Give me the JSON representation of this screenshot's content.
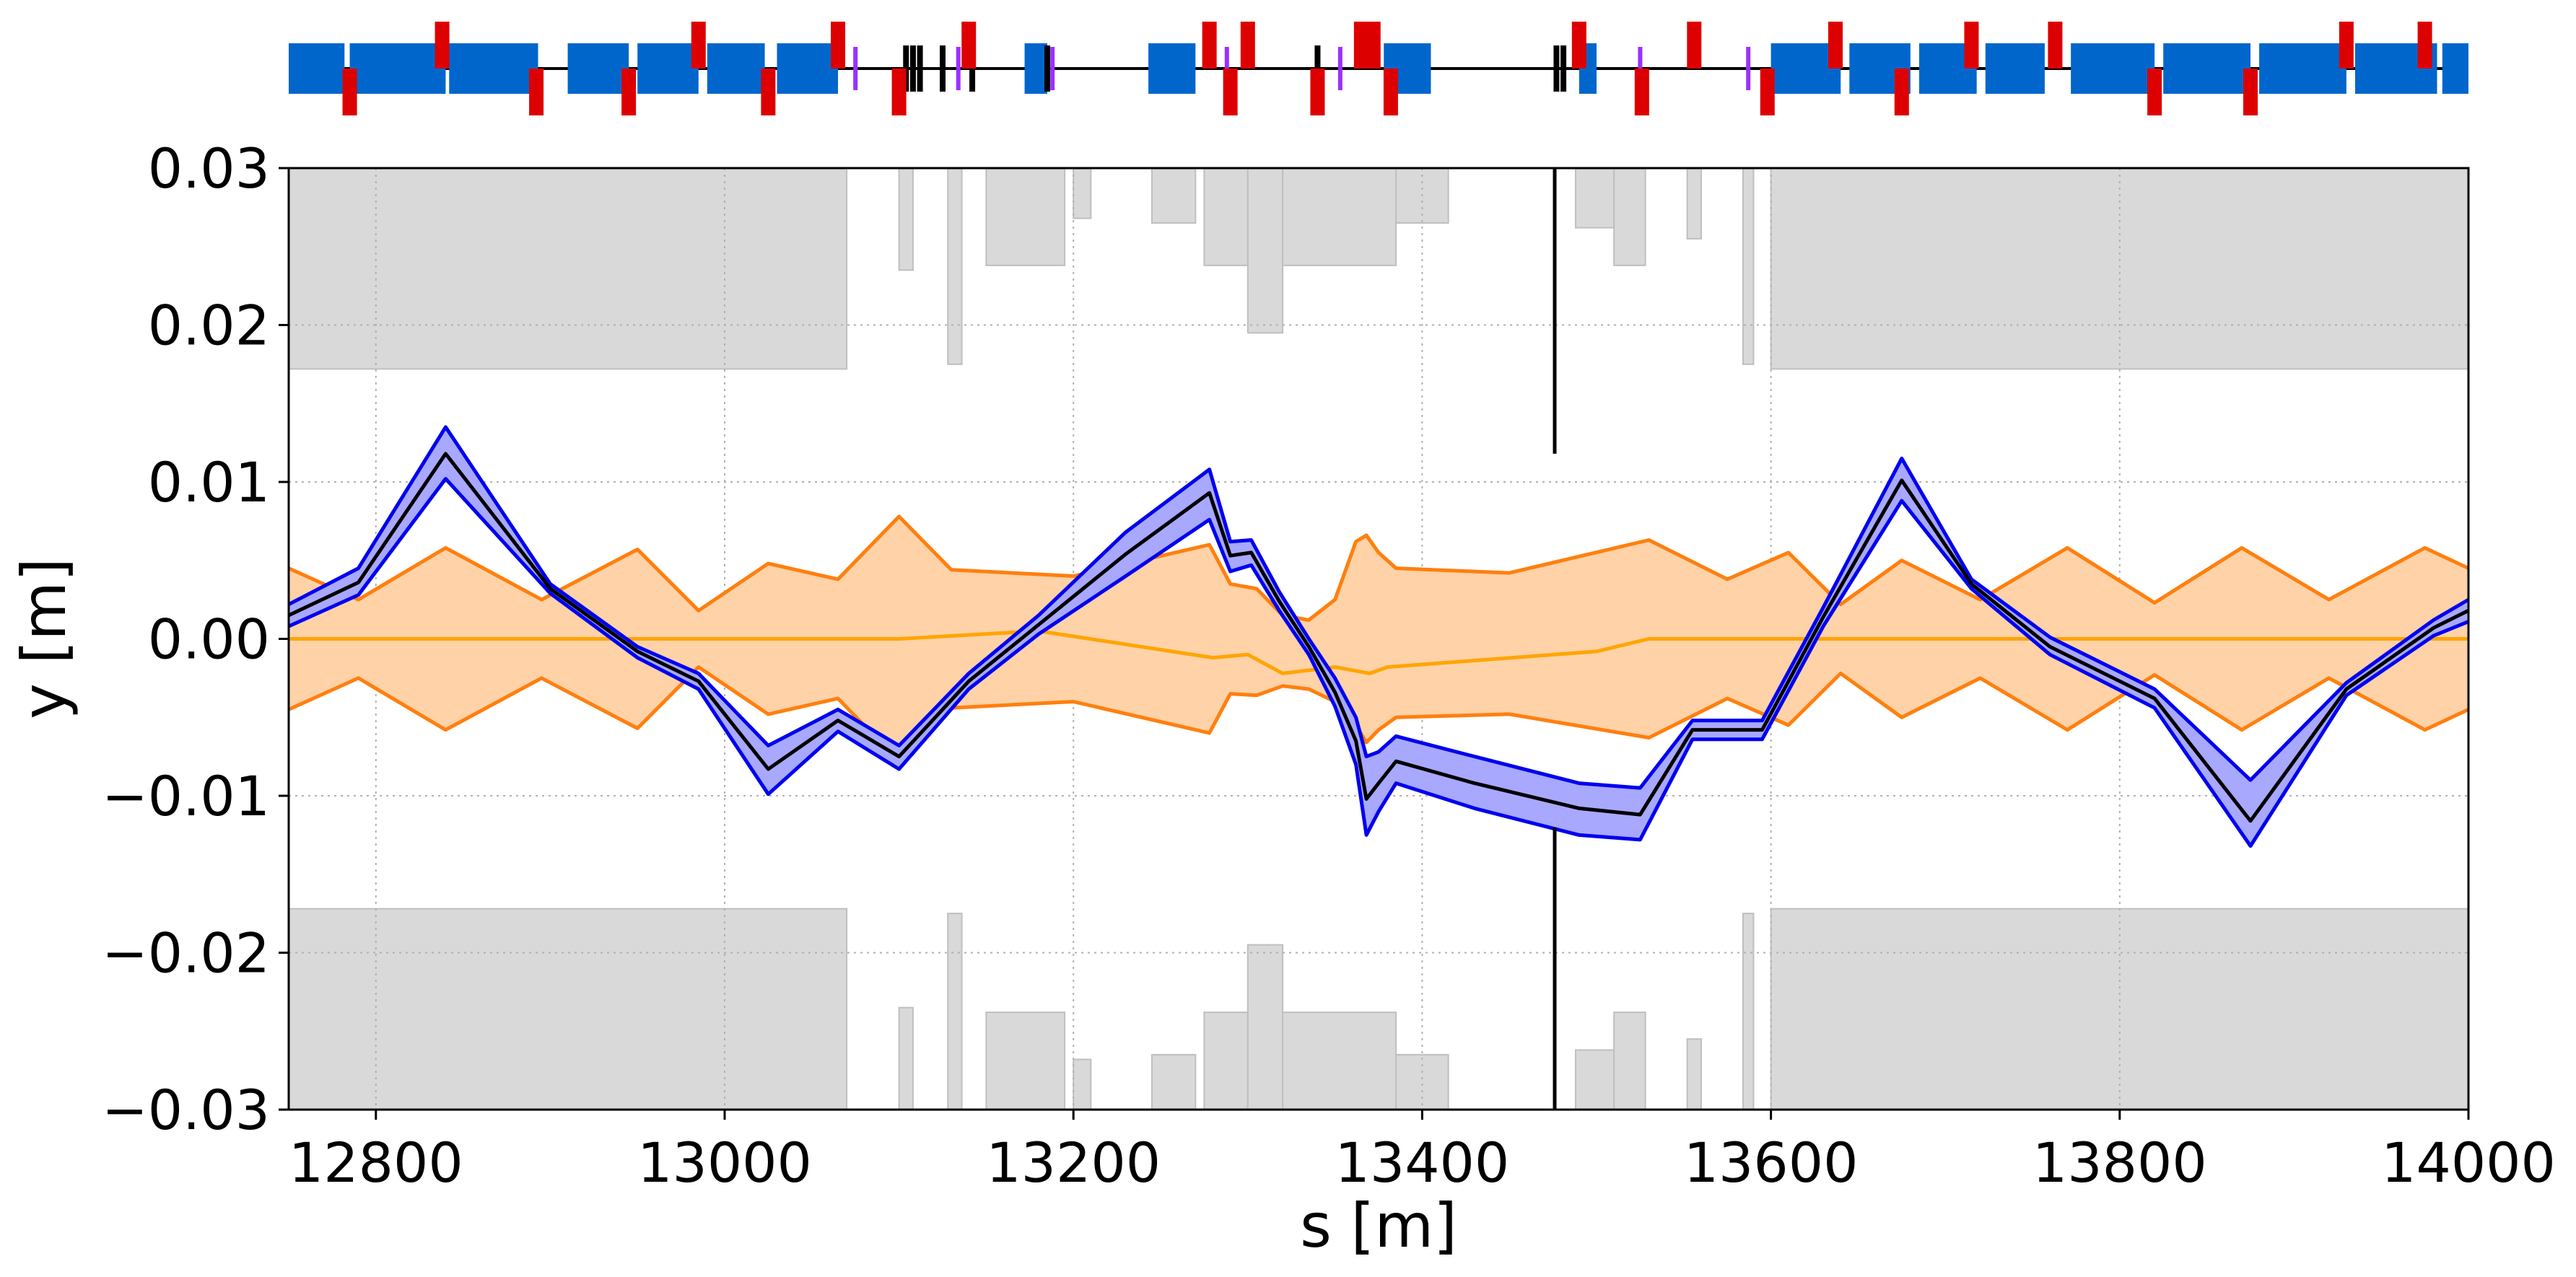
{
  "chart_data": {
    "type": "line",
    "xlabel": "s [m]",
    "ylabel": "y [m]",
    "xlim": [
      12750,
      14000
    ],
    "ylim": [
      -0.03,
      0.03
    ],
    "xticks": [
      12800,
      13000,
      13200,
      13400,
      13600,
      13800,
      14000
    ],
    "xtick_labels": [
      "12800",
      "13000",
      "13200",
      "13400",
      "13600",
      "13800",
      "14000"
    ],
    "yticks": [
      0.03,
      0.02,
      0.01,
      0.0,
      -0.01,
      -0.02,
      -0.03
    ],
    "ytick_labels": [
      "0.03",
      "0.02",
      "0.01",
      "0.00",
      "−0.01",
      "−0.02",
      "−0.03"
    ],
    "grid": true,
    "grid_style": "dotted",
    "colors": {
      "beam": "#0000ee",
      "beam_fill": "#a8a8ff",
      "beam_center": "#000000",
      "envelope": "#ff7f0e",
      "envelope_fill": "#ffd2a8",
      "orbit": "#ffa500",
      "aperture": "#d9d9d9",
      "aperture_edge": "#bfbfbf",
      "dipole": "#0066cc",
      "quadrupole": "#dd0000",
      "sextupole": "#9b30ff",
      "corrector": "#ffa500",
      "marker": "#000000"
    },
    "series": [
      {
        "role": "beam_upper",
        "x": [
          12750,
          12790,
          12840,
          12900,
          12950,
          12985,
          13025,
          13065,
          13100,
          13140,
          13180,
          13230,
          13278,
          13290,
          13302,
          13318,
          13335,
          13350,
          13362,
          13368,
          13375,
          13385,
          13430,
          13490,
          13525,
          13555,
          13595,
          13630,
          13675,
          13715,
          13760,
          13820,
          13875,
          13930,
          13980,
          14000
        ],
        "values": [
          0.0022,
          0.0045,
          0.0135,
          0.0035,
          -0.0005,
          -0.0022,
          -0.0068,
          -0.0045,
          -0.0068,
          -0.0022,
          0.0015,
          0.0068,
          0.0108,
          0.0062,
          0.0063,
          0.003,
          0.0,
          -0.0025,
          -0.005,
          -0.0075,
          -0.0072,
          -0.0062,
          -0.0075,
          -0.0092,
          -0.0095,
          -0.0052,
          -0.0052,
          0.002,
          0.0115,
          0.0038,
          0.0001,
          -0.0032,
          -0.009,
          -0.0028,
          0.0012,
          0.0025
        ]
      },
      {
        "role": "beam_center",
        "x": [
          12750,
          12790,
          12840,
          12900,
          12950,
          12985,
          13025,
          13065,
          13100,
          13140,
          13180,
          13230,
          13278,
          13290,
          13302,
          13318,
          13335,
          13350,
          13362,
          13368,
          13375,
          13385,
          13430,
          13490,
          13525,
          13555,
          13595,
          13630,
          13675,
          13715,
          13760,
          13820,
          13875,
          13930,
          13980,
          14000
        ],
        "values": [
          0.0015,
          0.0036,
          0.0118,
          0.0032,
          -0.0008,
          -0.0027,
          -0.0083,
          -0.0052,
          -0.0075,
          -0.0027,
          0.0009,
          0.0054,
          0.0093,
          0.0053,
          0.0055,
          0.0024,
          -0.0005,
          -0.0034,
          -0.0065,
          -0.0102,
          -0.0092,
          -0.0078,
          -0.0092,
          -0.0108,
          -0.0112,
          -0.0058,
          -0.0058,
          0.0014,
          0.0101,
          0.0035,
          -0.0005,
          -0.0038,
          -0.0116,
          -0.0032,
          0.0007,
          0.0018
        ]
      },
      {
        "role": "beam_lower",
        "x": [
          12750,
          12790,
          12840,
          12900,
          12950,
          12985,
          13025,
          13065,
          13100,
          13140,
          13180,
          13230,
          13278,
          13290,
          13302,
          13318,
          13335,
          13350,
          13362,
          13368,
          13375,
          13385,
          13430,
          13490,
          13525,
          13555,
          13595,
          13630,
          13675,
          13715,
          13760,
          13820,
          13875,
          13930,
          13980,
          14000
        ],
        "values": [
          0.0008,
          0.0028,
          0.0102,
          0.0029,
          -0.0012,
          -0.0032,
          -0.0099,
          -0.0059,
          -0.0083,
          -0.0032,
          0.0003,
          0.004,
          0.0076,
          0.0043,
          0.0047,
          0.0018,
          -0.001,
          -0.0043,
          -0.008,
          -0.0125,
          -0.011,
          -0.0092,
          -0.0108,
          -0.0125,
          -0.0128,
          -0.0064,
          -0.0064,
          0.0008,
          0.0088,
          0.0032,
          -0.001,
          -0.0044,
          -0.0132,
          -0.0036,
          0.0002,
          0.0011
        ]
      },
      {
        "role": "envelope_upper",
        "x": [
          12750,
          12790,
          12840,
          12895,
          12950,
          12985,
          13025,
          13065,
          13100,
          13130,
          13200,
          13278,
          13290,
          13305,
          13320,
          13335,
          13350,
          13362,
          13368,
          13375,
          13385,
          13450,
          13530,
          13575,
          13610,
          13640,
          13675,
          13720,
          13770,
          13820,
          13870,
          13920,
          13975,
          14000
        ],
        "values": [
          0.0045,
          0.0025,
          0.0058,
          0.0025,
          0.0057,
          0.0018,
          0.0048,
          0.0038,
          0.0078,
          0.0044,
          0.004,
          0.006,
          0.0035,
          0.0032,
          0.0015,
          0.0012,
          0.0025,
          0.0062,
          0.0066,
          0.0055,
          0.0045,
          0.0042,
          0.0063,
          0.0038,
          0.0055,
          0.0022,
          0.005,
          0.0025,
          0.0058,
          0.0023,
          0.0058,
          0.0025,
          0.0058,
          0.0045
        ]
      },
      {
        "role": "envelope_lower",
        "x": [
          12750,
          12790,
          12840,
          12895,
          12950,
          12985,
          13025,
          13065,
          13100,
          13130,
          13200,
          13278,
          13290,
          13305,
          13320,
          13335,
          13350,
          13362,
          13368,
          13375,
          13385,
          13450,
          13530,
          13575,
          13610,
          13640,
          13675,
          13720,
          13770,
          13820,
          13870,
          13920,
          13975,
          14000
        ],
        "values": [
          -0.0045,
          -0.0025,
          -0.0058,
          -0.0025,
          -0.0057,
          -0.0018,
          -0.0048,
          -0.0038,
          -0.0078,
          -0.0044,
          -0.004,
          -0.006,
          -0.0035,
          -0.0036,
          -0.003,
          -0.0032,
          -0.004,
          -0.0055,
          -0.0066,
          -0.0058,
          -0.005,
          -0.0048,
          -0.0063,
          -0.0038,
          -0.0055,
          -0.0022,
          -0.005,
          -0.0025,
          -0.0058,
          -0.0023,
          -0.0058,
          -0.0025,
          -0.0058,
          -0.0045
        ]
      },
      {
        "role": "orbit",
        "x": [
          12750,
          13100,
          13180,
          13280,
          13300,
          13320,
          13350,
          13370,
          13380,
          13500,
          13530,
          14000
        ],
        "values": [
          0.0,
          0.0,
          0.0005,
          -0.0012,
          -0.001,
          -0.0022,
          -0.0018,
          -0.0022,
          -0.0018,
          -0.0008,
          0.0,
          0.0
        ]
      }
    ],
    "aperture": {
      "top_blocks": [
        [
          12750,
          13070,
          0.0172
        ],
        [
          13100,
          13108,
          0.0235
        ],
        [
          13128,
          13136,
          0.0175
        ],
        [
          13150,
          13195,
          0.0238
        ],
        [
          13200,
          13210,
          0.0268
        ],
        [
          13245,
          13270,
          0.0265
        ],
        [
          13275,
          13300,
          0.0238
        ],
        [
          13300,
          13320,
          0.0195
        ],
        [
          13320,
          13385,
          0.0238
        ],
        [
          13385,
          13415,
          0.0265
        ],
        [
          13488,
          13510,
          0.0262
        ],
        [
          13510,
          13528,
          0.0238
        ],
        [
          13552,
          13560,
          0.0255
        ],
        [
          13584,
          13590,
          0.0175
        ],
        [
          13600,
          14000,
          0.0172
        ]
      ],
      "bottom_blocks": [
        [
          12750,
          13070,
          -0.0172
        ],
        [
          13100,
          13108,
          -0.0235
        ],
        [
          13128,
          13136,
          -0.0175
        ],
        [
          13150,
          13195,
          -0.0238
        ],
        [
          13200,
          13210,
          -0.0268
        ],
        [
          13245,
          13270,
          -0.0265
        ],
        [
          13275,
          13300,
          -0.0238
        ],
        [
          13300,
          13320,
          -0.0195
        ],
        [
          13320,
          13385,
          -0.0238
        ],
        [
          13385,
          13415,
          -0.0265
        ],
        [
          13488,
          13510,
          -0.0262
        ],
        [
          13510,
          13528,
          -0.0238
        ],
        [
          13552,
          13560,
          -0.0255
        ],
        [
          13584,
          13590,
          -0.0175
        ],
        [
          13600,
          14000,
          -0.0172
        ]
      ],
      "marker_lines": [
        [
          13476,
          0.03,
          0.0118
        ],
        [
          13476,
          -0.012,
          -0.03
        ]
      ]
    },
    "lattice": {
      "dipoles": [
        [
          12750,
          12782
        ],
        [
          12785,
          12840
        ],
        [
          12842,
          12893
        ],
        [
          12910,
          12945
        ],
        [
          12950,
          12985
        ],
        [
          12990,
          13023
        ],
        [
          13030,
          13065
        ],
        [
          13172,
          13185
        ],
        [
          13243,
          13270
        ],
        [
          13378,
          13405
        ],
        [
          13490,
          13500
        ],
        [
          13600,
          13640
        ],
        [
          13645,
          13680
        ],
        [
          13685,
          13718
        ],
        [
          13723,
          13757
        ],
        [
          13772,
          13820
        ],
        [
          13825,
          13875
        ],
        [
          13880,
          13930
        ],
        [
          13935,
          13982
        ],
        [
          13985,
          14000
        ]
      ],
      "quadrupoles": [
        [
          12785,
          -1
        ],
        [
          12838,
          1
        ],
        [
          12892,
          -1
        ],
        [
          12945,
          -1
        ],
        [
          12985,
          1
        ],
        [
          13025,
          -1
        ],
        [
          13065,
          1
        ],
        [
          13100,
          -1
        ],
        [
          13140,
          1
        ],
        [
          13278,
          1
        ],
        [
          13290,
          -1
        ],
        [
          13300,
          1
        ],
        [
          13340,
          -1
        ],
        [
          13365,
          1
        ],
        [
          13372,
          1
        ],
        [
          13382,
          -1
        ],
        [
          13490,
          1
        ],
        [
          13526,
          -1
        ],
        [
          13556,
          1
        ],
        [
          13598,
          -1
        ],
        [
          13637,
          1
        ],
        [
          13675,
          -1
        ],
        [
          13715,
          1
        ],
        [
          13763,
          1
        ],
        [
          13820,
          -1
        ],
        [
          13875,
          -1
        ],
        [
          13930,
          1
        ],
        [
          13975,
          1
        ]
      ],
      "sextupoles": [
        13075,
        13134,
        13188,
        13288,
        13353,
        13525,
        13587
      ],
      "markers": [
        13104,
        13108,
        13112,
        13125,
        13142,
        13185,
        13340,
        13477,
        13481
      ]
    }
  }
}
